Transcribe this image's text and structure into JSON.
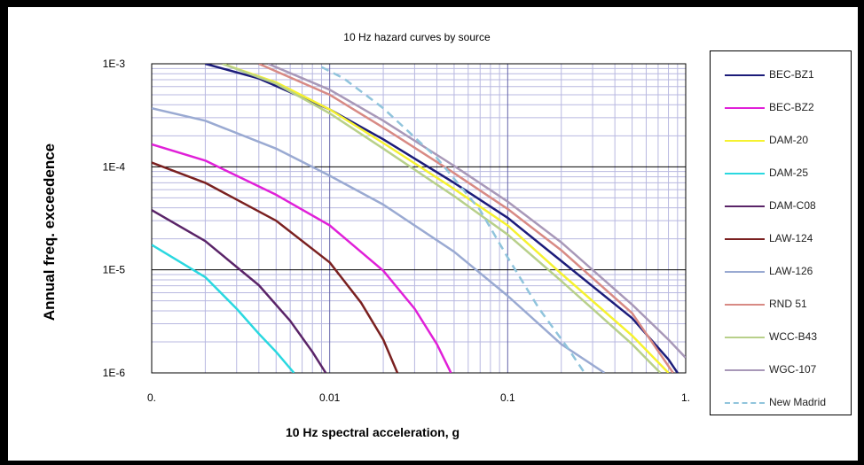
{
  "chart_data": {
    "type": "line",
    "title": "10 Hz hazard curves by source",
    "xlabel": "10 Hz spectral acceleration, g",
    "ylabel": "Annual freq. exceedence",
    "x_scale": "log",
    "y_scale": "log",
    "xlim": [
      0.001,
      1
    ],
    "ylim": [
      1e-06,
      0.001
    ],
    "x_tick_labels": [
      "0.",
      "0.01",
      "0.1",
      "1."
    ],
    "y_tick_labels": [
      "1E-3",
      "1E-4",
      "1E-5",
      "1E-6"
    ],
    "grid": true,
    "legend_position": "right",
    "series": [
      {
        "name": "BEC-BZ1",
        "color": "#1c1c7a",
        "style": "solid",
        "points": [
          [
            0.002,
            0.001
          ],
          [
            0.004,
            0.00072
          ],
          [
            0.01,
            0.00036
          ],
          [
            0.02,
            0.000185
          ],
          [
            0.05,
            7e-05
          ],
          [
            0.1,
            3.2e-05
          ],
          [
            0.2,
            1.22e-05
          ],
          [
            0.5,
            3.4e-06
          ],
          [
            0.8,
            1.35e-06
          ],
          [
            0.9,
            1e-06
          ]
        ]
      },
      {
        "name": "BEC-BZ2",
        "color": "#e020d8",
        "style": "solid",
        "points": [
          [
            0.001,
            0.000165
          ],
          [
            0.002,
            0.000115
          ],
          [
            0.005,
            5.35e-05
          ],
          [
            0.01,
            2.7e-05
          ],
          [
            0.02,
            9.8e-06
          ],
          [
            0.03,
            4.2e-06
          ],
          [
            0.04,
            1.9e-06
          ],
          [
            0.048,
            1e-06
          ]
        ]
      },
      {
        "name": "DAM-20",
        "color": "#f5f230",
        "style": "solid",
        "points": [
          [
            0.0025,
            0.001
          ],
          [
            0.005,
            0.00066
          ],
          [
            0.01,
            0.00036
          ],
          [
            0.02,
            0.00017
          ],
          [
            0.05,
            6.1e-05
          ],
          [
            0.1,
            2.7e-05
          ],
          [
            0.2,
            9.2e-06
          ],
          [
            0.5,
            2.3e-06
          ],
          [
            0.8,
            1e-06
          ]
        ]
      },
      {
        "name": "DAM-25",
        "color": "#2ad8e0",
        "style": "solid",
        "points": [
          [
            0.001,
            1.75e-05
          ],
          [
            0.002,
            8.5e-06
          ],
          [
            0.003,
            4.2e-06
          ],
          [
            0.004,
            2.4e-06
          ],
          [
            0.005,
            1.6e-06
          ],
          [
            0.0063,
            1e-06
          ]
        ]
      },
      {
        "name": "DAM-C08",
        "color": "#5a2468",
        "style": "solid",
        "points": [
          [
            0.001,
            3.8e-05
          ],
          [
            0.002,
            1.9e-05
          ],
          [
            0.004,
            7.1e-06
          ],
          [
            0.006,
            3.2e-06
          ],
          [
            0.008,
            1.6e-06
          ],
          [
            0.0095,
            1e-06
          ]
        ]
      },
      {
        "name": "LAW-124",
        "color": "#7a2020",
        "style": "solid",
        "points": [
          [
            0.001,
            0.00011
          ],
          [
            0.002,
            7e-05
          ],
          [
            0.005,
            3e-05
          ],
          [
            0.01,
            1.18e-05
          ],
          [
            0.015,
            4.8e-06
          ],
          [
            0.02,
            2.1e-06
          ],
          [
            0.024,
            1e-06
          ]
        ]
      },
      {
        "name": "LAW-126",
        "color": "#9aaad2",
        "style": "solid",
        "points": [
          [
            0.001,
            0.00037
          ],
          [
            0.002,
            0.00028
          ],
          [
            0.005,
            0.00015
          ],
          [
            0.01,
            8.2e-05
          ],
          [
            0.02,
            4.3e-05
          ],
          [
            0.05,
            1.5e-05
          ],
          [
            0.1,
            5.6e-06
          ],
          [
            0.2,
            1.9e-06
          ],
          [
            0.35,
            1e-06
          ]
        ]
      },
      {
        "name": "RND 51",
        "color": "#d88a84",
        "style": "solid",
        "points": [
          [
            0.004,
            0.001
          ],
          [
            0.01,
            0.0005
          ],
          [
            0.02,
            0.00024
          ],
          [
            0.05,
            8.7e-05
          ],
          [
            0.1,
            3.9e-05
          ],
          [
            0.2,
            1.55e-05
          ],
          [
            0.5,
            3.8e-06
          ],
          [
            0.85,
            1e-06
          ]
        ]
      },
      {
        "name": "WCC-B43",
        "color": "#b8d08a",
        "style": "solid",
        "points": [
          [
            0.0025,
            0.001
          ],
          [
            0.005,
            0.00064
          ],
          [
            0.01,
            0.00033
          ],
          [
            0.02,
            0.00015
          ],
          [
            0.05,
            5.2e-05
          ],
          [
            0.1,
            2.2e-05
          ],
          [
            0.2,
            7.8e-06
          ],
          [
            0.5,
            1.9e-06
          ],
          [
            0.72,
            1e-06
          ]
        ]
      },
      {
        "name": "WGC-107",
        "color": "#a898b8",
        "style": "solid",
        "points": [
          [
            0.0045,
            0.001
          ],
          [
            0.01,
            0.00056
          ],
          [
            0.02,
            0.00028
          ],
          [
            0.05,
            0.000102
          ],
          [
            0.1,
            4.6e-05
          ],
          [
            0.2,
            1.85e-05
          ],
          [
            0.5,
            4.6e-06
          ],
          [
            0.8,
            2.1e-06
          ],
          [
            1.0,
            1.4e-06
          ]
        ]
      },
      {
        "name": "New Madrid",
        "color": "#90c4dc",
        "style": "dashed",
        "points": [
          [
            0.009,
            0.00093
          ],
          [
            0.012,
            0.00072
          ],
          [
            0.02,
            0.00037
          ],
          [
            0.04,
            0.000122
          ],
          [
            0.07,
            3.8e-05
          ],
          [
            0.1,
            1.32e-05
          ],
          [
            0.15,
            4.2e-06
          ],
          [
            0.22,
            1.7e-06
          ],
          [
            0.27,
            1e-06
          ]
        ]
      }
    ]
  }
}
